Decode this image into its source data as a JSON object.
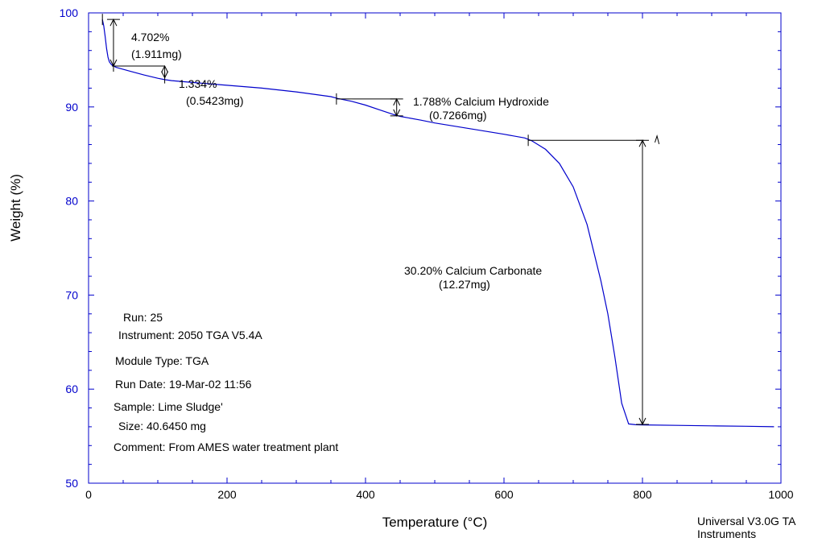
{
  "chart_data": {
    "type": "line",
    "title": "",
    "xlabel": "Temperature (°C)",
    "ylabel": "Weight (%)",
    "xlim": [
      0,
      1000
    ],
    "ylim": [
      50,
      100
    ],
    "x_ticks": [
      "0",
      "200",
      "400",
      "600",
      "800",
      "1000"
    ],
    "y_ticks": [
      "50",
      "60",
      "70",
      "80",
      "90",
      "100"
    ],
    "grid": false,
    "line_color": "#0000cc",
    "axis_color": "#0000cc",
    "series": [
      {
        "x": [
          20,
          22,
          24,
          26,
          28,
          30,
          33,
          36,
          40,
          50,
          60,
          80,
          100,
          110,
          120,
          150,
          200,
          250,
          300,
          350,
          360,
          380,
          400,
          420,
          440,
          450,
          480,
          500,
          550,
          600,
          630,
          640,
          660,
          680,
          700,
          720,
          740,
          750,
          760,
          770,
          780,
          790,
          800,
          850,
          900,
          950,
          990
        ],
        "y": [
          99.3,
          98.6,
          97.5,
          96.2,
          95.3,
          94.8,
          94.5,
          94.35,
          94.2,
          94.0,
          93.8,
          93.4,
          93.05,
          92.9,
          92.8,
          92.6,
          92.3,
          92.0,
          91.6,
          91.1,
          90.9,
          90.6,
          90.2,
          89.7,
          89.2,
          89.0,
          88.6,
          88.3,
          87.7,
          87.1,
          86.7,
          86.4,
          85.5,
          84.0,
          81.5,
          77.5,
          71.5,
          68.0,
          63.5,
          58.5,
          56.3,
          56.22,
          56.2,
          56.15,
          56.1,
          56.05,
          56.0
        ]
      }
    ],
    "annotations": [
      {
        "pct": "4.702%",
        "mass": "(1.911mg)"
      },
      {
        "pct": "1.334%",
        "mass": "(0.5423mg)"
      },
      {
        "pct": "1.788% Calcium Hydroxide",
        "mass": "(0.7266mg)"
      },
      {
        "pct": "30.20% Calcium Carbonate",
        "mass": "(12.27mg)"
      }
    ]
  },
  "run_info": {
    "run": "Run:  25",
    "instrument": "Instrument:  2050 TGA    V5.4A",
    "module_type": "Module Type:  TGA",
    "run_date": "Run Date:  19-Mar-02  11:56",
    "sample": "Sample:  Lime Sludge'",
    "size": "Size:  40.6450  mg",
    "comment": "Comment:  From AMES water treatment plant"
  },
  "footer": {
    "line1": "Universal V3.0G TA",
    "line2": "Instruments"
  }
}
